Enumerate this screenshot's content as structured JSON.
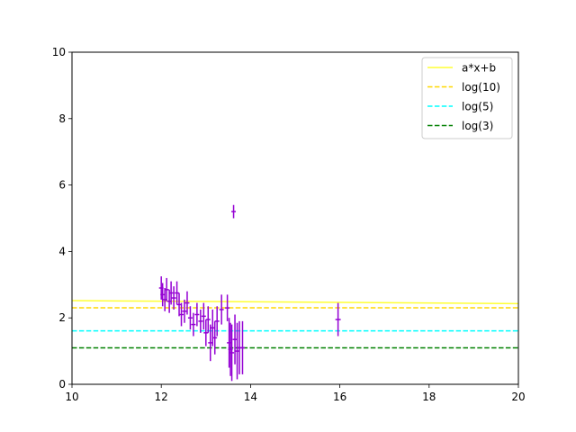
{
  "chart_data": {
    "type": "scatter",
    "title": "",
    "xlabel": "",
    "ylabel": "",
    "xlim": [
      10,
      20
    ],
    "ylim": [
      0,
      10
    ],
    "x_ticks": [
      10,
      12,
      14,
      16,
      18,
      20
    ],
    "y_ticks": [
      0,
      2,
      4,
      6,
      8,
      10
    ],
    "grid": false,
    "legend_position": "upper-right",
    "lines": [
      {
        "name": "a*x+b",
        "style": "solid",
        "color": "#ffff33",
        "x": [
          10,
          20
        ],
        "y": [
          2.52,
          2.43
        ]
      },
      {
        "name": "log(10)",
        "style": "dashed",
        "color": "#ffd700",
        "x": [
          10,
          20
        ],
        "y": [
          2.303,
          2.303
        ]
      },
      {
        "name": "log(5)",
        "style": "dashed",
        "color": "#00ffff",
        "x": [
          10,
          20
        ],
        "y": [
          1.609,
          1.609
        ]
      },
      {
        "name": "log(3)",
        "style": "dashed",
        "color": "#008000",
        "x": [
          10,
          20
        ],
        "y": [
          1.099,
          1.099
        ]
      }
    ],
    "errorbar_series": {
      "color": "#9400d3",
      "points": [
        {
          "x": 12.0,
          "y": 2.9,
          "xerr": 0.05,
          "yerr": 0.35
        },
        {
          "x": 12.03,
          "y": 2.7,
          "xerr": 0.05,
          "yerr": 0.35
        },
        {
          "x": 12.08,
          "y": 2.55,
          "xerr": 0.05,
          "yerr": 0.35
        },
        {
          "x": 12.12,
          "y": 2.85,
          "xerr": 0.05,
          "yerr": 0.35
        },
        {
          "x": 12.18,
          "y": 2.5,
          "xerr": 0.05,
          "yerr": 0.35
        },
        {
          "x": 12.22,
          "y": 2.75,
          "xerr": 0.05,
          "yerr": 0.35
        },
        {
          "x": 12.28,
          "y": 2.6,
          "xerr": 0.05,
          "yerr": 0.35
        },
        {
          "x": 12.35,
          "y": 2.75,
          "xerr": 0.05,
          "yerr": 0.35
        },
        {
          "x": 12.4,
          "y": 2.4,
          "xerr": 0.05,
          "yerr": 0.35
        },
        {
          "x": 12.45,
          "y": 2.1,
          "xerr": 0.05,
          "yerr": 0.35
        },
        {
          "x": 12.52,
          "y": 2.2,
          "xerr": 0.05,
          "yerr": 0.35
        },
        {
          "x": 12.58,
          "y": 2.45,
          "xerr": 0.05,
          "yerr": 0.35
        },
        {
          "x": 12.65,
          "y": 2.0,
          "xerr": 0.05,
          "yerr": 0.35
        },
        {
          "x": 12.72,
          "y": 1.8,
          "xerr": 0.05,
          "yerr": 0.35
        },
        {
          "x": 12.8,
          "y": 2.1,
          "xerr": 0.05,
          "yerr": 0.35
        },
        {
          "x": 12.88,
          "y": 1.9,
          "xerr": 0.05,
          "yerr": 0.35
        },
        {
          "x": 12.95,
          "y": 2.05,
          "xerr": 0.05,
          "yerr": 0.4
        },
        {
          "x": 13.0,
          "y": 1.55,
          "xerr": 0.05,
          "yerr": 0.4
        },
        {
          "x": 13.05,
          "y": 1.95,
          "xerr": 0.05,
          "yerr": 0.4
        },
        {
          "x": 13.1,
          "y": 1.25,
          "xerr": 0.05,
          "yerr": 0.55
        },
        {
          "x": 13.15,
          "y": 1.7,
          "xerr": 0.05,
          "yerr": 0.55
        },
        {
          "x": 13.2,
          "y": 1.4,
          "xerr": 0.05,
          "yerr": 0.5
        },
        {
          "x": 13.25,
          "y": 1.9,
          "xerr": 0.05,
          "yerr": 0.45
        },
        {
          "x": 13.35,
          "y": 2.25,
          "xerr": 0.05,
          "yerr": 0.45
        },
        {
          "x": 13.48,
          "y": 2.3,
          "xerr": 0.05,
          "yerr": 0.4
        },
        {
          "x": 13.52,
          "y": 1.25,
          "xerr": 0.05,
          "yerr": 0.75
        },
        {
          "x": 13.55,
          "y": 1.05,
          "xerr": 0.05,
          "yerr": 0.8
        },
        {
          "x": 13.58,
          "y": 0.95,
          "xerr": 0.05,
          "yerr": 0.85
        },
        {
          "x": 13.62,
          "y": 5.2,
          "xerr": 0.05,
          "yerr": 0.2
        },
        {
          "x": 13.65,
          "y": 1.35,
          "xerr": 0.05,
          "yerr": 0.75
        },
        {
          "x": 13.7,
          "y": 1.0,
          "xerr": 0.05,
          "yerr": 0.85
        },
        {
          "x": 13.75,
          "y": 1.1,
          "xerr": 0.05,
          "yerr": 0.8
        },
        {
          "x": 13.82,
          "y": 1.1,
          "xerr": 0.05,
          "yerr": 0.8
        },
        {
          "x": 15.96,
          "y": 1.95,
          "xerr": 0.06,
          "yerr": 0.5
        }
      ]
    }
  }
}
